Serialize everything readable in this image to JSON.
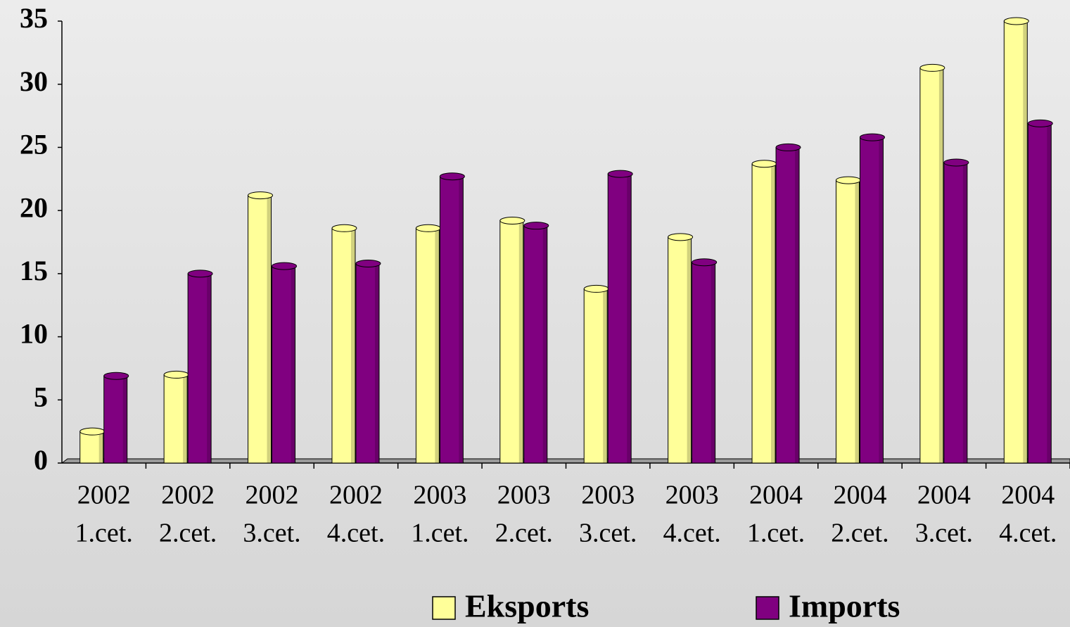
{
  "chart_data": {
    "type": "bar",
    "categories": [
      [
        "2002",
        "1.cet."
      ],
      [
        "2002",
        "2.cet."
      ],
      [
        "2002",
        "3.cet."
      ],
      [
        "2002",
        "4.cet."
      ],
      [
        "2003",
        "1.cet."
      ],
      [
        "2003",
        "2.cet."
      ],
      [
        "2003",
        "3.cet."
      ],
      [
        "2003",
        "4.cet."
      ],
      [
        "2004",
        "1.cet."
      ],
      [
        "2004",
        "2.cet."
      ],
      [
        "2004",
        "3.cet."
      ],
      [
        "2004",
        "4.cet."
      ]
    ],
    "series": [
      {
        "name": "Eksports",
        "color": "#ffff99",
        "values": [
          2.5,
          7,
          21.2,
          18.6,
          18.6,
          19.2,
          13.8,
          17.9,
          23.7,
          22.4,
          31.3,
          35
        ]
      },
      {
        "name": "Imports",
        "color": "#800080",
        "values": [
          6.9,
          15,
          15.6,
          15.8,
          22.7,
          18.8,
          22.9,
          15.9,
          25,
          25.8,
          23.8,
          26.9
        ]
      }
    ],
    "ylim": [
      0,
      35
    ],
    "yticks": [
      0,
      5,
      10,
      15,
      20,
      25,
      30,
      35
    ]
  }
}
